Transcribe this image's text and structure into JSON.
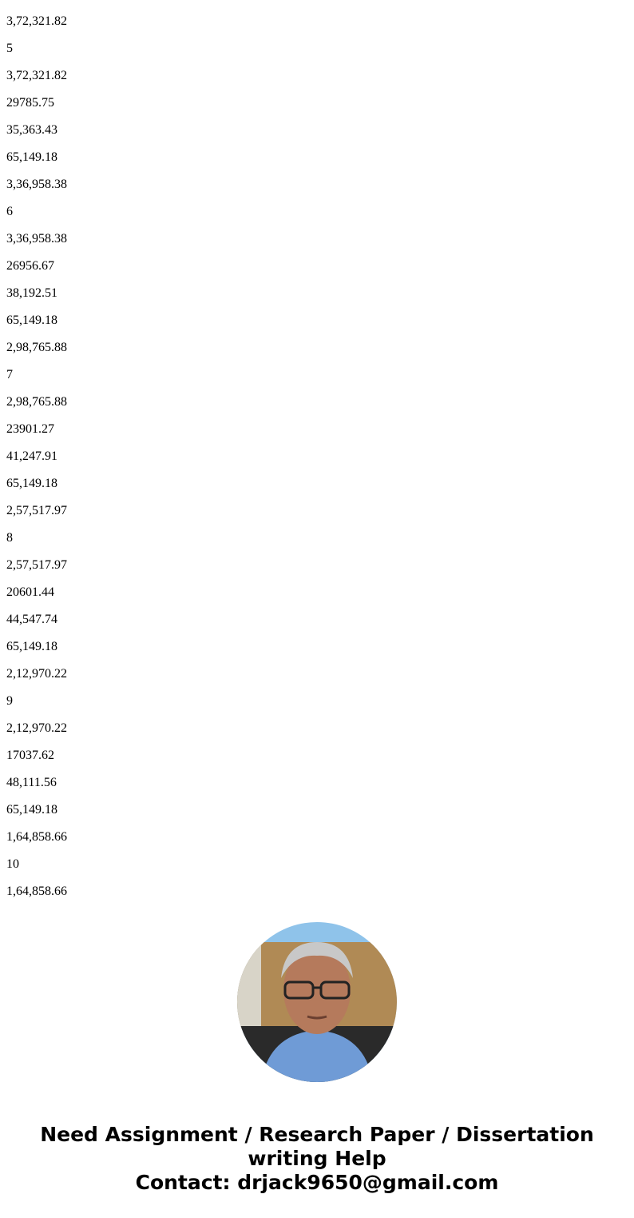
{
  "values": [
    "3,72,321.82",
    "5",
    "3,72,321.82",
    "29785.75",
    "35,363.43",
    "65,149.18",
    "3,36,958.38",
    "6",
    "3,36,958.38",
    "26956.67",
    "38,192.51",
    "65,149.18",
    "2,98,765.88",
    "7",
    "2,98,765.88",
    "23901.27",
    "41,247.91",
    "65,149.18",
    "2,57,517.97",
    "8",
    "2,57,517.97",
    "20601.44",
    "44,547.74",
    "65,149.18",
    "2,12,970.22",
    "9",
    "2,12,970.22",
    "17037.62",
    "48,111.56",
    "65,149.18",
    "1,64,858.66",
    "10",
    "1,64,858.66"
  ],
  "footer": {
    "line1": "Need Assignment / Research Paper / Dissertation",
    "line2": "writing Help",
    "line3": "Contact: drjack9650@gmail.com"
  }
}
